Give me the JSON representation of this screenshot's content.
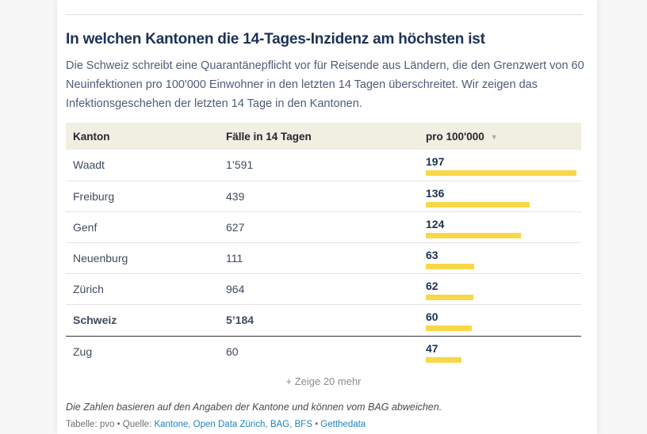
{
  "header": {
    "title": "In welchen Kantonen die 14-Tages-Inzidenz am höchsten ist",
    "description": "Die Schweiz schreibt eine Quarantänepflicht vor für Reisende aus Ländern, die den Grenzwert von 60 Neuinfektionen pro 100'000 Einwohner in den letzten 14 Tagen überschreitet. Wir zeigen das Infektionsgeschehen der letzten 14 Tage in den Kantonen."
  },
  "chart_data": {
    "type": "table",
    "title": "In welchen Kantonen die 14-Tages-Inzidenz am höchsten ist",
    "columns": [
      "Kanton",
      "Fälle in 14 Tagen",
      "pro 100'000"
    ],
    "sort_column": "pro 100'000",
    "sort_direction": "desc",
    "sort_caret": "▼",
    "bar_max": 197,
    "bar_color": "#f8d748",
    "rows": [
      {
        "kanton": "Waadt",
        "faelle": "1’591",
        "pro100k": 197,
        "emphasis": false
      },
      {
        "kanton": "Freiburg",
        "faelle": "439",
        "pro100k": 136,
        "emphasis": false
      },
      {
        "kanton": "Genf",
        "faelle": "627",
        "pro100k": 124,
        "emphasis": false
      },
      {
        "kanton": "Neuenburg",
        "faelle": "111",
        "pro100k": 63,
        "emphasis": false
      },
      {
        "kanton": "Zürich",
        "faelle": "964",
        "pro100k": 62,
        "emphasis": false
      },
      {
        "kanton": "Schweiz",
        "faelle": "5’184",
        "pro100k": 60,
        "emphasis": true
      },
      {
        "kanton": "Zug",
        "faelle": "60",
        "pro100k": 47,
        "emphasis": false
      }
    ]
  },
  "footer": {
    "show_more": "+ Zeige 20 mehr",
    "note": "Die Zahlen basieren auf den Angaben der Kantone und können vom BAG abweichen.",
    "credit_prefix": "Tabelle: pvo • Quelle: ",
    "credit_sources": "Kantone, Open Data Zürich, BAG, BFS",
    "credit_separator": " • ",
    "credit_extra": "Getthedata"
  }
}
